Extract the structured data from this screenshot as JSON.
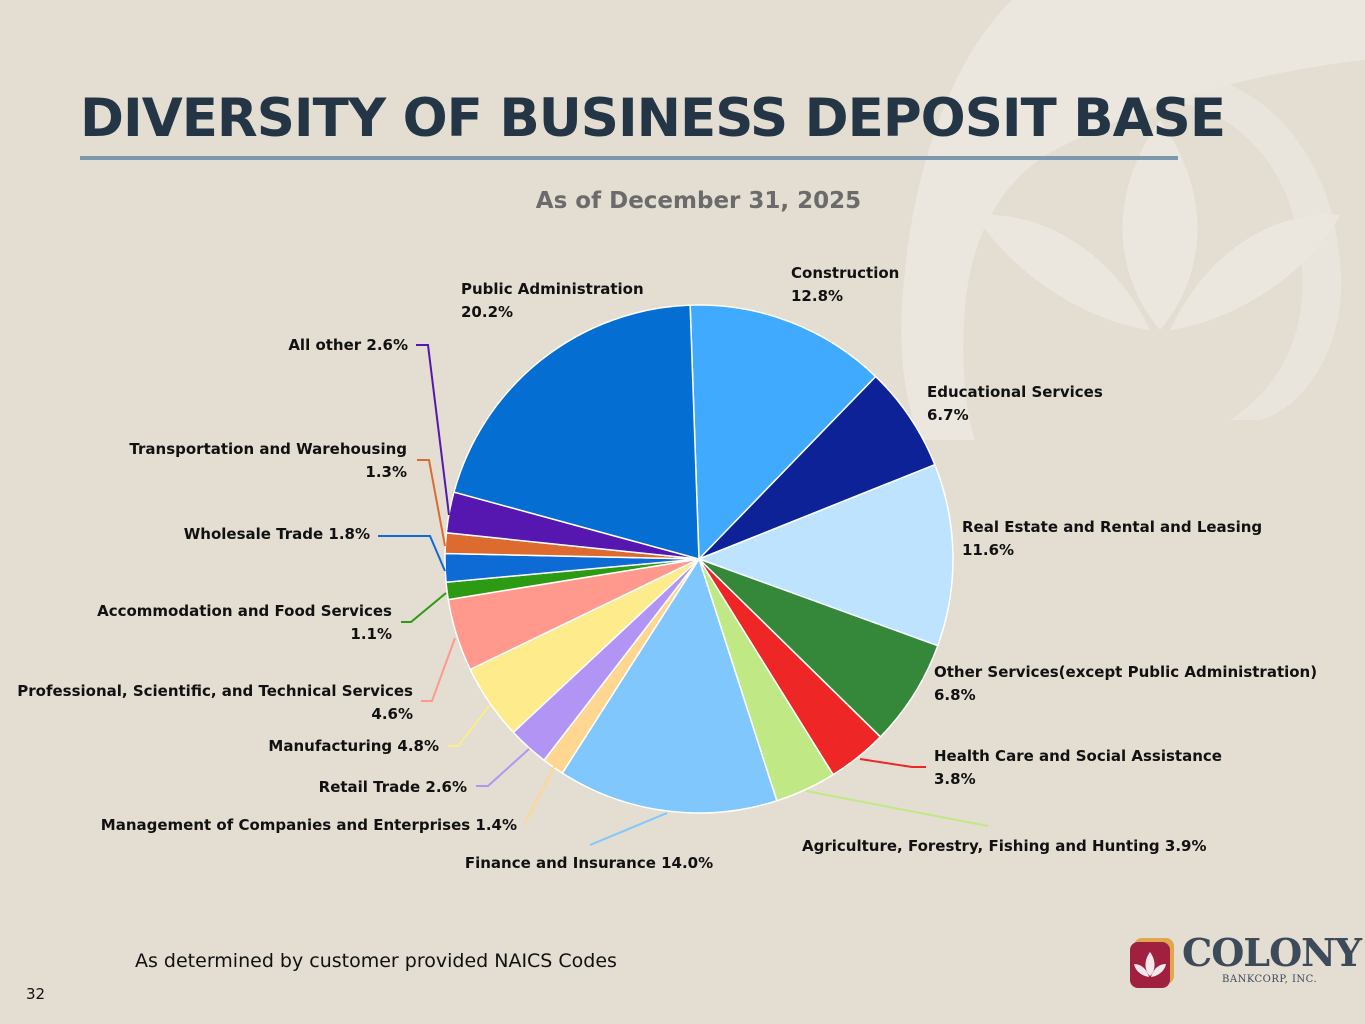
{
  "slide": {
    "title": "DIVERSITY OF BUSINESS DEPOSIT BASE",
    "footnote": "As determined by customer provided NAICS Codes",
    "page_number": "32"
  },
  "logo": {
    "name": "COLONY",
    "subtitle": "BANKCORP, INC.",
    "colors": {
      "mark_red": "#a02040",
      "mark_gold": "#e0a848",
      "text": "#3c4a5a"
    }
  },
  "chart_data": {
    "type": "pie",
    "title": "",
    "subtitle": "As of December 31, 2025",
    "start_angle_deg": -2,
    "direction": "clockwise",
    "slices": [
      {
        "name": "Construction",
        "value": 12.8,
        "label_lines": [
          "Construction",
          "12.8%"
        ],
        "color": "#40aaff"
      },
      {
        "name": "Educational Services",
        "value": 6.7,
        "label_lines": [
          "Educational Services",
          "6.7%"
        ],
        "color": "#0c2296"
      },
      {
        "name": "Real Estate and Rental and Leasing",
        "value": 11.6,
        "label_lines": [
          "Real Estate and Rental and Leasing",
          "11.6%"
        ],
        "color": "#bde3ff"
      },
      {
        "name": "Other Services(except Public Administration)",
        "value": 6.8,
        "label_lines": [
          "Other Services(except Public Administration)",
          "6.8%"
        ],
        "color": "#35883a"
      },
      {
        "name": "Health Care and Social Assistance",
        "value": 3.8,
        "label_lines": [
          "Health Care and Social Assistance",
          "3.8%"
        ],
        "color": "#ee2626"
      },
      {
        "name": "Agriculture, Forestry, Fishing and Hunting",
        "value": 3.9,
        "label_lines": [
          "Agriculture, Forestry, Fishing and Hunting 3.9%"
        ],
        "color": "#c0e985"
      },
      {
        "name": "Finance and Insurance",
        "value": 14.0,
        "label_lines": [
          "Finance and Insurance 14.0%"
        ],
        "color": "#80c7fd"
      },
      {
        "name": "Management of Companies and Enterprises",
        "value": 1.4,
        "label_lines": [
          "Management of Companies and Enterprises 1.4%"
        ],
        "color": "#ffd790"
      },
      {
        "name": "Retail Trade",
        "value": 2.6,
        "label_lines": [
          "Retail Trade 2.6%"
        ],
        "color": "#b294f5"
      },
      {
        "name": "Manufacturing",
        "value": 4.8,
        "label_lines": [
          "Manufacturing 4.8%"
        ],
        "color": "#fdeb8c"
      },
      {
        "name": "Professional, Scientific, and Technical Services",
        "value": 4.6,
        "label_lines": [
          "Professional, Scientific, and Technical Services",
          "4.6%"
        ],
        "color": "#ff998e"
      },
      {
        "name": "Accommodation and Food Services",
        "value": 1.1,
        "label_lines": [
          "Accommodation and Food Services",
          "1.1%"
        ],
        "color": "#2d9a14"
      },
      {
        "name": "Wholesale Trade",
        "value": 1.8,
        "label_lines": [
          "Wholesale Trade 1.8%"
        ],
        "color": "#0e6bd6"
      },
      {
        "name": "Transportation and Warehousing",
        "value": 1.3,
        "label_lines": [
          "Transportation and Warehousing",
          "1.3%"
        ],
        "color": "#dd6b30"
      },
      {
        "name": "All other",
        "value": 2.6,
        "label_lines": [
          "All other 2.6%"
        ],
        "color": "#5616b0"
      },
      {
        "name": "Public Administration",
        "value": 20.2,
        "label_lines": [
          "Public Administration",
          "20.2%"
        ],
        "color": "#056ed3"
      }
    ]
  }
}
